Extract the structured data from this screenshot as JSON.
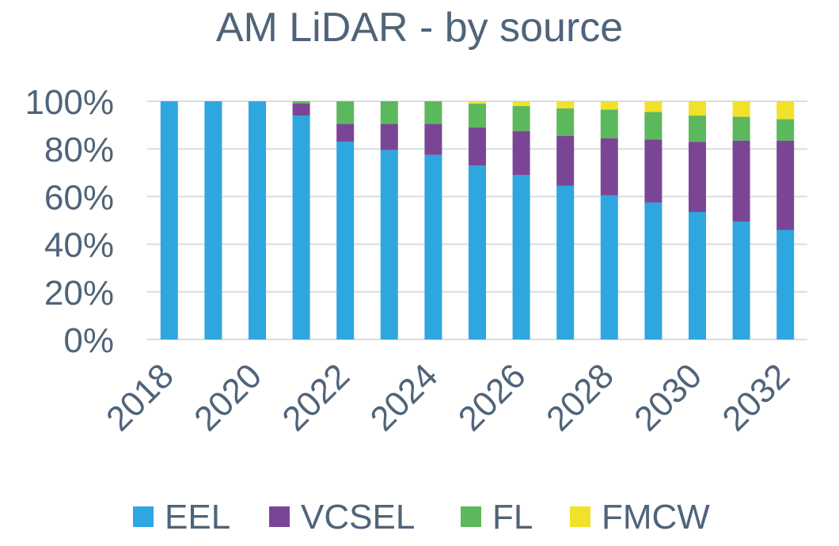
{
  "chart_data": {
    "type": "bar",
    "stacked": true,
    "percent": true,
    "title": "AM LiDAR - by source",
    "xlabel": "",
    "ylabel": "",
    "ylim": [
      0,
      100
    ],
    "y_ticks": [
      "0%",
      "20%",
      "40%",
      "60%",
      "80%",
      "100%"
    ],
    "x_tick_labels": [
      "2018",
      "2020",
      "2022",
      "2024",
      "2026",
      "2028",
      "2030",
      "2032"
    ],
    "categories": [
      "2018",
      "2019",
      "2020",
      "2021",
      "2022",
      "2023",
      "2024",
      "2025",
      "2026",
      "2027",
      "2028",
      "2029",
      "2030",
      "2031",
      "2032"
    ],
    "series": [
      {
        "name": "EEL",
        "color": "#2ea6e0",
        "values": [
          100,
          100,
          100,
          94,
          83,
          79.5,
          77.5,
          73,
          69,
          64.5,
          60.5,
          57.5,
          53.5,
          49.5,
          46
        ]
      },
      {
        "name": "VCSEL",
        "color": "#7b4596",
        "values": [
          0,
          0,
          0,
          5,
          7.5,
          11,
          13,
          16,
          18.5,
          21,
          24,
          26.5,
          29.5,
          34,
          37.5
        ]
      },
      {
        "name": "FL",
        "color": "#5cb85c",
        "values": [
          0,
          0,
          0,
          1,
          9.5,
          9.5,
          9.5,
          10,
          10.5,
          11.5,
          12,
          11.5,
          11,
          10,
          9
        ]
      },
      {
        "name": "FMCW",
        "color": "#f2e12b",
        "values": [
          0,
          0,
          0,
          0,
          0,
          0,
          0,
          1,
          2,
          3,
          3.5,
          4.5,
          6,
          6.5,
          7.5
        ]
      }
    ],
    "grid": true,
    "legend_position": "bottom"
  }
}
